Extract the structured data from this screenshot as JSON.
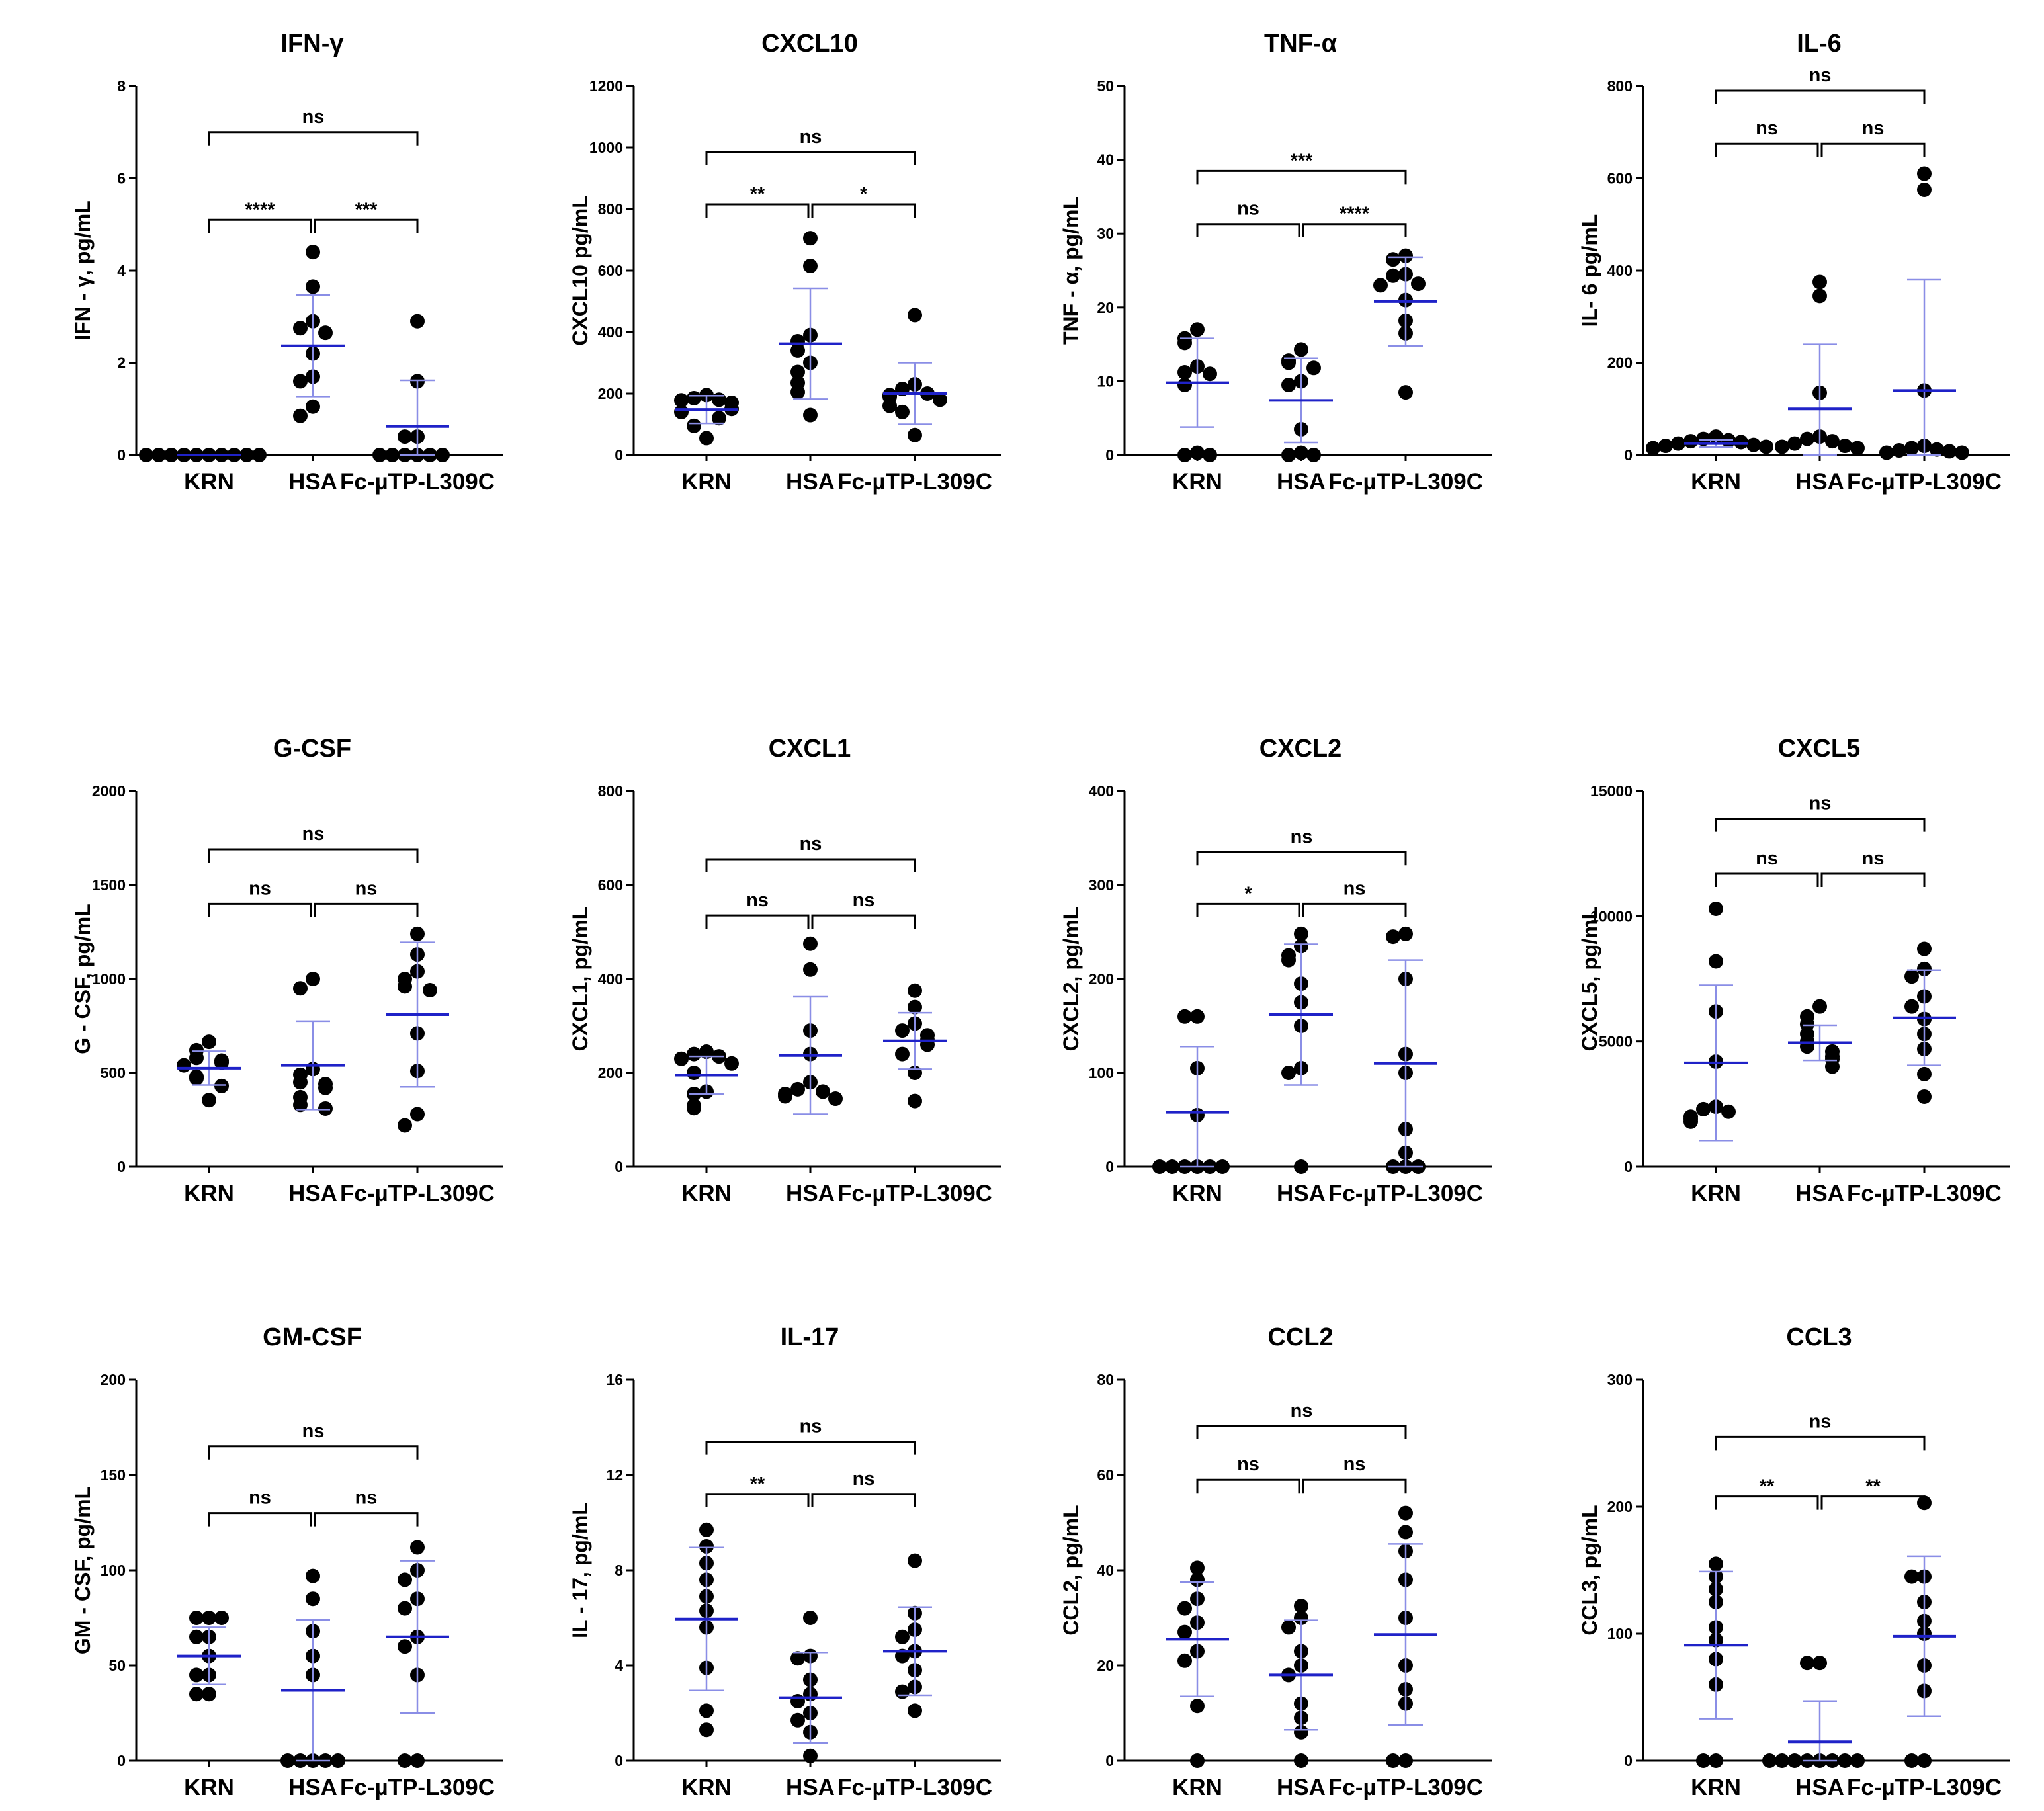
{
  "figure": {
    "groups": [
      "KRN",
      "HSA",
      "Fc-µTP-L309C"
    ]
  },
  "colors": {
    "mean_line": "#1f22c8",
    "sd_line": "#8a8ee6",
    "points": "#000000",
    "axis": "#000000"
  },
  "chart_data": [
    {
      "type": "scatter",
      "title": "IFN-γ",
      "ylabel": "IFN - γ, pg/mL",
      "ylim": [
        0,
        8
      ],
      "yticks": [
        0,
        2,
        4,
        6,
        8
      ],
      "categories": [
        "KRN",
        "HSA",
        "Fc-µTP-L309C"
      ],
      "series": [
        {
          "name": "KRN",
          "mean": 0,
          "sd": 0,
          "values": [
            0,
            0,
            0,
            0,
            0,
            0,
            0,
            0,
            0,
            0
          ]
        },
        {
          "name": "HSA",
          "mean": 2.37,
          "sd": 1.1,
          "values": [
            4.4,
            3.65,
            2.9,
            2.75,
            2.65,
            2.2,
            1.7,
            1.6,
            1.05,
            0.85
          ]
        },
        {
          "name": "Fc-µTP-L309C",
          "mean": 0.62,
          "sd": 1.0,
          "values": [
            2.9,
            1.6,
            0.4,
            0.4,
            0,
            0,
            0,
            0,
            0,
            0
          ]
        }
      ],
      "comparisons": [
        {
          "from": 0,
          "to": 2,
          "label": "ns",
          "y": 7.0
        },
        {
          "from": 0,
          "to": 1,
          "label": "****",
          "y": 5.1
        },
        {
          "from": 1,
          "to": 2,
          "label": "***",
          "y": 5.1
        }
      ]
    },
    {
      "type": "scatter",
      "title": "CXCL10",
      "ylabel": "CXCL10 pg/mL",
      "ylim": [
        0,
        1200
      ],
      "yticks": [
        0,
        200,
        400,
        600,
        800,
        1000,
        1200
      ],
      "categories": [
        "KRN",
        "HSA",
        "Fc-µTP-L309C"
      ],
      "series": [
        {
          "name": "KRN",
          "mean": 148,
          "sd": 45,
          "values": [
            195,
            185,
            180,
            178,
            170,
            150,
            140,
            120,
            95,
            55
          ]
        },
        {
          "name": "HSA",
          "mean": 362,
          "sd": 180,
          "values": [
            705,
            615,
            390,
            370,
            340,
            300,
            270,
            235,
            205,
            130
          ]
        },
        {
          "name": "Fc-µTP-L309C",
          "mean": 200,
          "sd": 100,
          "values": [
            455,
            230,
            215,
            200,
            195,
            190,
            180,
            160,
            140,
            65
          ]
        }
      ],
      "comparisons": [
        {
          "from": 0,
          "to": 2,
          "label": "ns",
          "y": 985
        },
        {
          "from": 0,
          "to": 1,
          "label": "**",
          "y": 815
        },
        {
          "from": 1,
          "to": 2,
          "label": "*",
          "y": 815
        }
      ]
    },
    {
      "type": "scatter",
      "title": "TNF-α",
      "ylabel": "TNF - α, pg/mL",
      "ylim": [
        0,
        50
      ],
      "yticks": [
        0,
        10,
        20,
        30,
        40,
        50
      ],
      "categories": [
        "KRN",
        "HSA",
        "Fc-µTP-L309C"
      ],
      "series": [
        {
          "name": "KRN",
          "mean": 9.8,
          "sd": 6.0,
          "values": [
            17,
            15.8,
            15.2,
            12,
            11.2,
            11,
            9.5,
            0.3,
            0,
            0
          ]
        },
        {
          "name": "HSA",
          "mean": 7.4,
          "sd": 5.7,
          "values": [
            14.3,
            12.8,
            12.5,
            11.8,
            10,
            9.5,
            3.5,
            0.3,
            0,
            0
          ]
        },
        {
          "name": "Fc-µTP-L309C",
          "mean": 20.8,
          "sd": 6.0,
          "values": [
            27,
            26.5,
            24.5,
            24.3,
            23.2,
            23,
            21,
            18.2,
            16.5,
            8.5
          ]
        }
      ],
      "comparisons": [
        {
          "from": 0,
          "to": 2,
          "label": "***",
          "y": 38.5
        },
        {
          "from": 0,
          "to": 1,
          "label": "ns",
          "y": 31.3
        },
        {
          "from": 1,
          "to": 2,
          "label": "****",
          "y": 31.3
        }
      ]
    },
    {
      "type": "scatter",
      "title": "IL-6",
      "ylabel": "IL- 6 pg/mL",
      "ylim": [
        0,
        800
      ],
      "yticks": [
        0,
        200,
        400,
        600,
        800
      ],
      "categories": [
        "KRN",
        "HSA",
        "Fc-µTP-L309C"
      ],
      "series": [
        {
          "name": "KRN",
          "mean": 25,
          "sd": 8,
          "values": [
            40,
            35,
            32,
            30,
            28,
            25,
            22,
            20,
            18,
            15
          ]
        },
        {
          "name": "HSA",
          "mean": 100,
          "sd": 140,
          "values": [
            375,
            345,
            135,
            40,
            35,
            30,
            25,
            20,
            18,
            15
          ]
        },
        {
          "name": "Fc-µTP-L309C",
          "mean": 140,
          "sd": 240,
          "values": [
            610,
            575,
            140,
            20,
            15,
            12,
            10,
            8,
            5,
            5
          ]
        }
      ],
      "comparisons": [
        {
          "from": 0,
          "to": 2,
          "label": "ns",
          "y": 790
        },
        {
          "from": 0,
          "to": 1,
          "label": "ns",
          "y": 675
        },
        {
          "from": 1,
          "to": 2,
          "label": "ns",
          "y": 675
        }
      ]
    },
    {
      "type": "scatter",
      "title": "G-CSF",
      "ylabel": "G - CSF, pg/mL",
      "ylim": [
        0,
        2000
      ],
      "yticks": [
        0,
        500,
        1000,
        1500,
        2000
      ],
      "categories": [
        "KRN",
        "HSA",
        "Fc-µTP-L309C"
      ],
      "series": [
        {
          "name": "KRN",
          "mean": 525,
          "sd": 90,
          "values": [
            665,
            620,
            580,
            565,
            555,
            540,
            480,
            470,
            430,
            355
          ]
        },
        {
          "name": "HSA",
          "mean": 540,
          "sd": 235,
          "values": [
            1000,
            950,
            520,
            490,
            450,
            440,
            420,
            370,
            330,
            310
          ]
        },
        {
          "name": "Fc-µTP-L309C",
          "mean": 810,
          "sd": 385,
          "values": [
            1240,
            1130,
            1040,
            1000,
            960,
            940,
            710,
            510,
            280,
            220
          ]
        }
      ],
      "comparisons": [
        {
          "from": 0,
          "to": 2,
          "label": "ns",
          "y": 1690
        },
        {
          "from": 0,
          "to": 1,
          "label": "ns",
          "y": 1400
        },
        {
          "from": 1,
          "to": 2,
          "label": "ns",
          "y": 1400
        }
      ]
    },
    {
      "type": "scatter",
      "title": "CXCL1",
      "ylabel": "CXCL1, pg/mL",
      "ylim": [
        0,
        800
      ],
      "yticks": [
        0,
        200,
        400,
        600,
        800
      ],
      "categories": [
        "KRN",
        "HSA",
        "Fc-µTP-L309C"
      ],
      "series": [
        {
          "name": "KRN",
          "mean": 195,
          "sd": 40,
          "values": [
            245,
            240,
            235,
            230,
            220,
            200,
            160,
            155,
            130,
            125
          ]
        },
        {
          "name": "HSA",
          "mean": 237,
          "sd": 125,
          "values": [
            475,
            420,
            290,
            240,
            180,
            165,
            160,
            155,
            150,
            145
          ]
        },
        {
          "name": "Fc-µTP-L309C",
          "mean": 268,
          "sd": 60,
          "values": [
            375,
            340,
            305,
            290,
            280,
            270,
            260,
            240,
            200,
            140
          ]
        }
      ],
      "comparisons": [
        {
          "from": 0,
          "to": 2,
          "label": "ns",
          "y": 655
        },
        {
          "from": 0,
          "to": 1,
          "label": "ns",
          "y": 535
        },
        {
          "from": 1,
          "to": 2,
          "label": "ns",
          "y": 535
        }
      ]
    },
    {
      "type": "scatter",
      "title": "CXCL2",
      "ylabel": "CXCL2, pg/mL",
      "ylim": [
        0,
        400
      ],
      "yticks": [
        0,
        100,
        200,
        300,
        400
      ],
      "categories": [
        "KRN",
        "HSA",
        "Fc-µTP-L309C"
      ],
      "series": [
        {
          "name": "KRN",
          "mean": 58,
          "sd": 70,
          "values": [
            160,
            160,
            105,
            55,
            0,
            0,
            0,
            0,
            0,
            0
          ]
        },
        {
          "name": "HSA",
          "mean": 162,
          "sd": 75,
          "values": [
            248,
            235,
            225,
            220,
            195,
            175,
            150,
            105,
            100,
            0
          ]
        },
        {
          "name": "Fc-µTP-L309C",
          "mean": 110,
          "sd": 110,
          "values": [
            248,
            245,
            200,
            120,
            100,
            40,
            15,
            0,
            0,
            0
          ]
        }
      ],
      "comparisons": [
        {
          "from": 0,
          "to": 2,
          "label": "ns",
          "y": 335
        },
        {
          "from": 0,
          "to": 1,
          "label": "*",
          "y": 280
        },
        {
          "from": 1,
          "to": 2,
          "label": "ns",
          "y": 280
        }
      ]
    },
    {
      "type": "scatter",
      "title": "CXCL5",
      "ylabel": "CXCL5, pg/mL",
      "ylim": [
        0,
        15000
      ],
      "yticks": [
        0,
        5000,
        10000,
        15000
      ],
      "categories": [
        "KRN",
        "HSA",
        "Fc-µTP-L309C"
      ],
      "series": [
        {
          "name": "KRN",
          "mean": 4150,
          "sd": 3100,
          "values": [
            10300,
            8200,
            6200,
            4200,
            2400,
            2300,
            2200,
            2000,
            1900,
            1800
          ]
        },
        {
          "name": "HSA",
          "mean": 4950,
          "sd": 700,
          "values": [
            6400,
            6000,
            5700,
            5300,
            5000,
            4800,
            4600,
            4400,
            4300,
            4000
          ]
        },
        {
          "name": "Fc-µTP-L309C",
          "mean": 5950,
          "sd": 1900,
          "values": [
            8700,
            7900,
            7600,
            6800,
            6400,
            5900,
            5300,
            4700,
            3700,
            2800
          ]
        }
      ],
      "comparisons": [
        {
          "from": 0,
          "to": 2,
          "label": "ns",
          "y": 13900
        },
        {
          "from": 0,
          "to": 1,
          "label": "ns",
          "y": 11700
        },
        {
          "from": 1,
          "to": 2,
          "label": "ns",
          "y": 11700
        }
      ]
    },
    {
      "type": "scatter",
      "title": "GM-CSF",
      "ylabel": "GM - CSF, pg/mL",
      "ylim": [
        0,
        200
      ],
      "yticks": [
        0,
        50,
        100,
        150,
        200
      ],
      "categories": [
        "KRN",
        "HSA",
        "Fc-µTP-L309C"
      ],
      "series": [
        {
          "name": "KRN",
          "mean": 55,
          "sd": 15,
          "values": [
            75,
            75,
            75,
            65,
            65,
            55,
            45,
            45,
            35,
            35
          ]
        },
        {
          "name": "HSA",
          "mean": 37,
          "sd": 37,
          "values": [
            97,
            85,
            68,
            55,
            45,
            0,
            0,
            0,
            0,
            0
          ]
        },
        {
          "name": "Fc-µTP-L309C",
          "mean": 65,
          "sd": 40,
          "values": [
            112,
            100,
            95,
            85,
            80,
            65,
            60,
            45,
            0,
            0
          ]
        }
      ],
      "comparisons": [
        {
          "from": 0,
          "to": 2,
          "label": "ns",
          "y": 165
        },
        {
          "from": 0,
          "to": 1,
          "label": "ns",
          "y": 130
        },
        {
          "from": 1,
          "to": 2,
          "label": "ns",
          "y": 130
        }
      ]
    },
    {
      "type": "scatter",
      "title": "IL-17",
      "ylabel": "IL - 17, pg/mL",
      "ylim": [
        0,
        16
      ],
      "yticks": [
        0,
        4,
        8,
        12,
        16
      ],
      "categories": [
        "KRN",
        "HSA",
        "Fc-µTP-L309C"
      ],
      "series": [
        {
          "name": "KRN",
          "mean": 5.95,
          "sd": 3.0,
          "values": [
            9.7,
            9.0,
            8.3,
            7.6,
            6.9,
            6.3,
            5.6,
            3.9,
            2.1,
            1.3
          ]
        },
        {
          "name": "HSA",
          "mean": 2.65,
          "sd": 1.9,
          "values": [
            6.0,
            4.4,
            4.3,
            3.4,
            2.8,
            2.5,
            2.0,
            1.7,
            1.2,
            0.2
          ]
        },
        {
          "name": "Fc-µTP-L309C",
          "mean": 4.6,
          "sd": 1.85,
          "values": [
            8.4,
            6.2,
            5.5,
            5.2,
            4.6,
            4.4,
            3.8,
            3.1,
            2.9,
            2.1
          ]
        }
      ],
      "comparisons": [
        {
          "from": 0,
          "to": 2,
          "label": "ns",
          "y": 13.4
        },
        {
          "from": 0,
          "to": 1,
          "label": "**",
          "y": 11.2
        },
        {
          "from": 1,
          "to": 2,
          "label": "ns",
          "y": 11.2
        }
      ]
    },
    {
      "type": "scatter",
      "title": "CCL2",
      "ylabel": "CCL2, pg/mL",
      "ylim": [
        0,
        80
      ],
      "yticks": [
        0,
        20,
        40,
        60,
        80
      ],
      "categories": [
        "KRN",
        "HSA",
        "Fc-µTP-L309C"
      ],
      "series": [
        {
          "name": "KRN",
          "mean": 25.5,
          "sd": 12,
          "values": [
            40.5,
            38,
            34,
            32,
            29,
            27,
            23,
            21,
            11.5,
            0
          ]
        },
        {
          "name": "HSA",
          "mean": 18,
          "sd": 11.5,
          "values": [
            32.5,
            30,
            28,
            23,
            20,
            18,
            12,
            9,
            6,
            0
          ]
        },
        {
          "name": "Fc-µTP-L309C",
          "mean": 26.5,
          "sd": 19,
          "values": [
            52,
            48,
            44,
            38,
            30,
            20,
            15,
            12,
            0,
            0
          ]
        }
      ],
      "comparisons": [
        {
          "from": 0,
          "to": 2,
          "label": "ns",
          "y": 70.3
        },
        {
          "from": 0,
          "to": 1,
          "label": "ns",
          "y": 59
        },
        {
          "from": 1,
          "to": 2,
          "label": "ns",
          "y": 59
        }
      ]
    },
    {
      "type": "scatter",
      "title": "CCL3",
      "ylabel": "CCL3, pg/mL",
      "ylim": [
        0,
        300
      ],
      "yticks": [
        0,
        100,
        200,
        300
      ],
      "categories": [
        "KRN",
        "HSA",
        "Fc-µTP-L309C"
      ],
      "series": [
        {
          "name": "KRN",
          "mean": 91,
          "sd": 58,
          "values": [
            155,
            145,
            135,
            125,
            105,
            95,
            80,
            60,
            0,
            0
          ]
        },
        {
          "name": "HSA",
          "mean": 15,
          "sd": 32,
          "values": [
            77,
            77,
            0,
            0,
            0,
            0,
            0,
            0,
            0,
            0
          ]
        },
        {
          "name": "Fc-µTP-L309C",
          "mean": 98,
          "sd": 63,
          "values": [
            203,
            145,
            145,
            125,
            110,
            100,
            75,
            55,
            0,
            0
          ]
        }
      ],
      "comparisons": [
        {
          "from": 0,
          "to": 2,
          "label": "ns",
          "y": 255
        },
        {
          "from": 0,
          "to": 1,
          "label": "**",
          "y": 208
        },
        {
          "from": 1,
          "to": 2,
          "label": "**",
          "y": 208
        }
      ]
    }
  ]
}
